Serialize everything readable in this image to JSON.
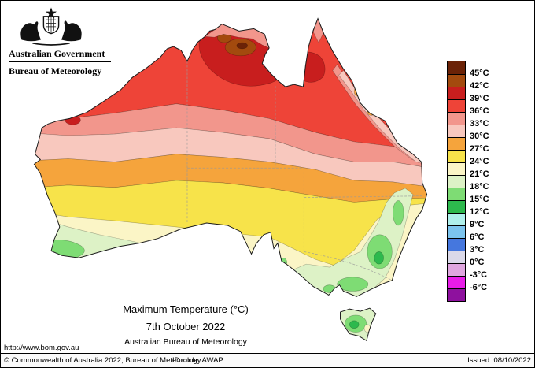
{
  "header": {
    "government": "Australian Government",
    "bureau": "Bureau of Meteorology"
  },
  "titles": {
    "main": "Maximum Temperature (°C)",
    "date": "7th October 2022",
    "org": "Australian Bureau of Meteorology",
    "url": "http://www.bom.gov.au"
  },
  "legend": {
    "unit": "°C",
    "labels": [
      "45°C",
      "42°C",
      "39°C",
      "36°C",
      "33°C",
      "30°C",
      "27°C",
      "24°C",
      "21°C",
      "18°C",
      "15°C",
      "12°C",
      "9°C",
      "6°C",
      "3°C",
      "0°C",
      "-3°C",
      "-6°C"
    ],
    "colors": [
      "#6B2207",
      "#A34A0E",
      "#C81E1E",
      "#EE4438",
      "#F2968C",
      "#F8C8BE",
      "#F5A43C",
      "#F7E34A",
      "#FBF5C6",
      "#DDF2C6",
      "#7EDC74",
      "#2DB94D",
      "#AFF0EC",
      "#7CC4EE",
      "#4577DE",
      "#DBD9E9",
      "#DFA6DF",
      "#E81CE8",
      "#8E119E"
    ]
  },
  "footer": {
    "copyright": "© Commonwealth of Australia 2022, Bureau of Meteorology",
    "id_code": "ID code: AWAP",
    "issued": "Issued: 08/10/2022"
  }
}
